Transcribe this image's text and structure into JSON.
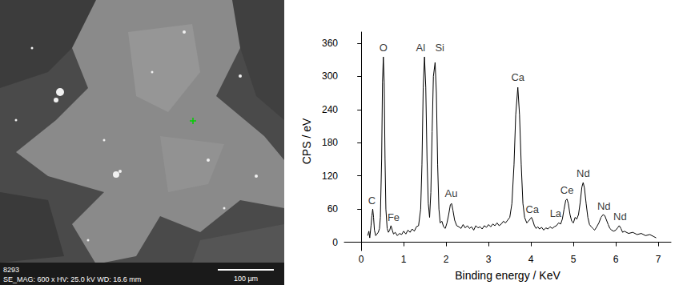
{
  "micrograph": {
    "id": "8293",
    "info": "SE_MAG: 600 x HV: 25.0 kV WD: 16.6 mm",
    "scale_bar": "100 µm"
  },
  "chart_data": {
    "type": "line",
    "x_label": "Binding energy / KeV",
    "y_label": "CPS / eV",
    "xlim": [
      -0.4,
      7.3
    ],
    "xticks": [
      0,
      1,
      2,
      3,
      4,
      5,
      6,
      7
    ],
    "ylim": [
      -15,
      380
    ],
    "yticks": [
      0,
      60,
      120,
      180,
      240,
      300,
      360
    ],
    "grid": false,
    "color": "#000000",
    "x": [
      0.15,
      0.18,
      0.2,
      0.23,
      0.25,
      0.27,
      0.29,
      0.31,
      0.34,
      0.37,
      0.4,
      0.43,
      0.45,
      0.48,
      0.5,
      0.52,
      0.54,
      0.56,
      0.58,
      0.61,
      0.64,
      0.67,
      0.7,
      0.73,
      0.76,
      0.8,
      0.85,
      0.9,
      0.95,
      1.0,
      1.05,
      1.1,
      1.15,
      1.2,
      1.25,
      1.3,
      1.35,
      1.4,
      1.43,
      1.46,
      1.49,
      1.52,
      1.55,
      1.58,
      1.61,
      1.64,
      1.67,
      1.7,
      1.74,
      1.77,
      1.8,
      1.83,
      1.86,
      1.9,
      1.94,
      1.98,
      2.02,
      2.06,
      2.1,
      2.13,
      2.16,
      2.2,
      2.25,
      2.3,
      2.35,
      2.4,
      2.45,
      2.5,
      2.55,
      2.6,
      2.65,
      2.7,
      2.75,
      2.8,
      2.85,
      2.9,
      2.95,
      3.0,
      3.05,
      3.1,
      3.15,
      3.2,
      3.25,
      3.3,
      3.35,
      3.4,
      3.45,
      3.5,
      3.55,
      3.6,
      3.64,
      3.69,
      3.73,
      3.77,
      3.81,
      3.85,
      3.9,
      3.94,
      3.98,
      4.01,
      4.04,
      4.08,
      4.12,
      4.16,
      4.2,
      4.25,
      4.3,
      4.35,
      4.4,
      4.45,
      4.5,
      4.55,
      4.6,
      4.65,
      4.7,
      4.74,
      4.78,
      4.82,
      4.85,
      4.88,
      4.92,
      4.96,
      5.0,
      5.04,
      5.08,
      5.12,
      5.16,
      5.2,
      5.23,
      5.26,
      5.3,
      5.34,
      5.38,
      5.42,
      5.46,
      5.5,
      5.55,
      5.6,
      5.65,
      5.7,
      5.74,
      5.78,
      5.82,
      5.86,
      5.9,
      5.95,
      6.0,
      6.04,
      6.08,
      6.12,
      6.16,
      6.2,
      6.3,
      6.4,
      6.5,
      6.6,
      6.7,
      6.8,
      6.9,
      6.95
    ],
    "values": [
      12,
      20,
      8,
      30,
      48,
      60,
      45,
      22,
      12,
      15,
      18,
      25,
      45,
      150,
      290,
      335,
      290,
      150,
      60,
      25,
      18,
      22,
      30,
      22,
      15,
      18,
      12,
      16,
      14,
      20,
      15,
      22,
      18,
      24,
      20,
      28,
      30,
      60,
      140,
      280,
      335,
      280,
      150,
      70,
      45,
      90,
      200,
      300,
      325,
      270,
      140,
      60,
      35,
      38,
      28,
      25,
      35,
      50,
      68,
      70,
      58,
      40,
      30,
      28,
      25,
      32,
      26,
      30,
      25,
      28,
      22,
      30,
      26,
      28,
      24,
      30,
      27,
      32,
      28,
      33,
      30,
      35,
      30,
      33,
      38,
      35,
      40,
      45,
      70,
      140,
      230,
      280,
      230,
      140,
      70,
      45,
      35,
      38,
      42,
      45,
      40,
      30,
      25,
      28,
      24,
      27,
      22,
      26,
      24,
      28,
      25,
      28,
      30,
      35,
      33,
      42,
      60,
      76,
      78,
      70,
      50,
      38,
      35,
      45,
      42,
      50,
      72,
      100,
      108,
      98,
      70,
      45,
      32,
      28,
      25,
      22,
      28,
      35,
      45,
      50,
      48,
      40,
      32,
      25,
      22,
      20,
      22,
      26,
      30,
      25,
      18,
      20,
      16,
      18,
      14,
      16,
      12,
      14,
      10,
      8
    ],
    "annotations": [
      {
        "text": "C",
        "x": 0.25,
        "y": 76
      },
      {
        "text": "O",
        "x": 0.52,
        "y": 352
      },
      {
        "text": "Fe",
        "x": 0.76,
        "y": 45
      },
      {
        "text": "Al",
        "x": 1.4,
        "y": 352
      },
      {
        "text": "Si",
        "x": 1.85,
        "y": 352
      },
      {
        "text": "Au",
        "x": 2.12,
        "y": 88
      },
      {
        "text": "Ca",
        "x": 3.69,
        "y": 298
      },
      {
        "text": "Ca",
        "x": 4.03,
        "y": 60
      },
      {
        "text": "La",
        "x": 4.58,
        "y": 52
      },
      {
        "text": "Ce",
        "x": 4.85,
        "y": 94
      },
      {
        "text": "Nd",
        "x": 5.23,
        "y": 124
      },
      {
        "text": "Nd",
        "x": 5.72,
        "y": 66
      },
      {
        "text": "Nd",
        "x": 6.1,
        "y": 46
      }
    ]
  }
}
